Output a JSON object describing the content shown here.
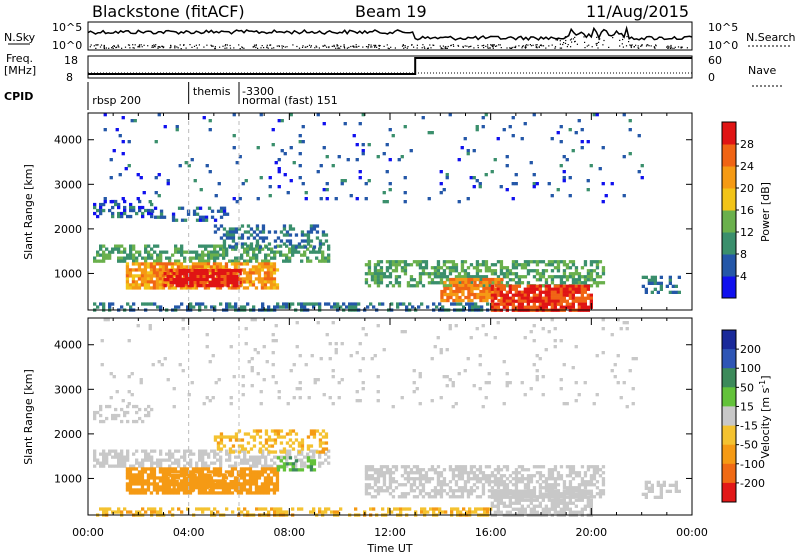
{
  "header": {
    "station": "Blackstone (fitACF)",
    "beam": "Beam 19",
    "date": "11/Aug/2015"
  },
  "nsky_panel": {
    "left_label": "N.Sky",
    "right_label": "N.Search",
    "left_ticks": [
      "10^5",
      "10^0"
    ],
    "right_ticks": [
      "10^5",
      "10^0"
    ]
  },
  "freq_panel": {
    "left_label_1": "Freq.",
    "left_label_2": "[MHz]",
    "right_label": "Nave",
    "left_ticks": [
      "18",
      "8"
    ],
    "right_ticks": [
      "60",
      "0"
    ],
    "freq_mhz": [
      {
        "t": 0,
        "v": 10
      },
      {
        "t": 13.0,
        "v": 10
      },
      {
        "t": 13.0,
        "v": 18
      },
      {
        "t": 24,
        "v": 18
      }
    ],
    "nave_level": 18
  },
  "cpid_panel": {
    "label": "CPID",
    "entries": [
      {
        "t": 0.05,
        "name": "rbsp 200",
        "row": 1
      },
      {
        "t": 4.05,
        "name": "themis",
        "row": 0
      },
      {
        "t": 6.0,
        "name": "-3300",
        "row": 0
      },
      {
        "t": 6.0,
        "name": "normal (fast) 151",
        "row": 1
      }
    ],
    "markers_hours": [
      4.0,
      6.0
    ]
  },
  "colors": {
    "power": [
      "#1010ee",
      "#2457a8",
      "#3a8f6c",
      "#6ab04c",
      "#f2c418",
      "#f59a14",
      "#f06414",
      "#e01414"
    ],
    "velocity": [
      "#1a2a9a",
      "#2e55b5",
      "#3c8a5a",
      "#63c23a",
      "#c8c8c8",
      "#f4c230",
      "#f59a14",
      "#f06a14",
      "#e21818"
    ]
  },
  "chart_data": [
    {
      "type": "heatmap",
      "name": "power",
      "ylabel": "Slant Range [km]",
      "xlim_hours": [
        0,
        24
      ],
      "ylim_km": [
        180,
        4600
      ],
      "yticks": [
        1000,
        2000,
        3000,
        4000
      ],
      "colorbar": {
        "label": "Power [dB]",
        "ticks": [
          4,
          8,
          12,
          16,
          20,
          24,
          28
        ],
        "range": [
          0,
          32
        ]
      },
      "regions": [
        {
          "t0": 0.2,
          "t1": 9.5,
          "r0": 1250,
          "r1": 1650,
          "v": 12,
          "d": 0.55
        },
        {
          "t0": 1.5,
          "t1": 7.5,
          "r0": 650,
          "r1": 1250,
          "v": 22,
          "d": 0.8
        },
        {
          "t0": 3.0,
          "t1": 6.0,
          "r0": 700,
          "r1": 1100,
          "v": 30,
          "d": 0.85
        },
        {
          "t0": 5.0,
          "t1": 9.5,
          "r0": 1600,
          "r1": 2100,
          "v": 8,
          "d": 0.35
        },
        {
          "t0": 0.2,
          "t1": 2.5,
          "r0": 2300,
          "r1": 2650,
          "v": 6,
          "d": 0.4
        },
        {
          "t0": 2.5,
          "t1": 5.5,
          "r0": 2200,
          "r1": 2500,
          "v": 6,
          "d": 0.3
        },
        {
          "t0": 11.0,
          "t1": 20.5,
          "r0": 700,
          "r1": 1300,
          "v": 12,
          "d": 0.55
        },
        {
          "t0": 14.0,
          "t1": 16.5,
          "r0": 400,
          "r1": 900,
          "v": 24,
          "d": 0.75
        },
        {
          "t0": 16.0,
          "t1": 20.0,
          "r0": 200,
          "r1": 750,
          "v": 29,
          "d": 0.85
        },
        {
          "t0": 0.2,
          "t1": 16.0,
          "r0": 180,
          "r1": 350,
          "v": 8,
          "d": 0.45
        },
        {
          "t0": 22.0,
          "t1": 23.5,
          "r0": 550,
          "r1": 950,
          "v": 8,
          "d": 0.45
        },
        {
          "t0": 0.5,
          "t1": 22.0,
          "r0": 2600,
          "r1": 4600,
          "v": 6,
          "d": 0.04
        }
      ]
    },
    {
      "type": "heatmap",
      "name": "velocity",
      "ylabel": "Slant Range [km]",
      "xlim_hours": [
        0,
        24
      ],
      "ylim_km": [
        180,
        4600
      ],
      "yticks": [
        1000,
        2000,
        3000,
        4000
      ],
      "colorbar": {
        "label": "Velocity [m s^-1]",
        "ticks": [
          200,
          100,
          50,
          15,
          -15,
          -50,
          -100,
          -200
        ],
        "range": [
          -250,
          250
        ]
      },
      "regions": [
        {
          "t0": 0.2,
          "t1": 9.5,
          "r0": 1250,
          "r1": 1650,
          "v": 0,
          "d": 0.55
        },
        {
          "t0": 1.5,
          "t1": 7.5,
          "r0": 650,
          "r1": 1250,
          "v": -40,
          "d": 0.8
        },
        {
          "t0": 3.0,
          "t1": 6.0,
          "r0": 700,
          "r1": 1100,
          "v": -60,
          "d": 0.6
        },
        {
          "t0": 5.0,
          "t1": 9.5,
          "r0": 1600,
          "r1": 2100,
          "v": -30,
          "d": 0.35
        },
        {
          "t0": 7.5,
          "t1": 9.0,
          "r0": 1200,
          "r1": 1500,
          "v": 30,
          "d": 0.5
        },
        {
          "t0": 0.2,
          "t1": 2.5,
          "r0": 2300,
          "r1": 2650,
          "v": 0,
          "d": 0.35
        },
        {
          "t0": 11.0,
          "t1": 20.5,
          "r0": 600,
          "r1": 1300,
          "v": 0,
          "d": 0.55
        },
        {
          "t0": 16.0,
          "t1": 20.0,
          "r0": 200,
          "r1": 750,
          "v": 0,
          "d": 0.7
        },
        {
          "t0": 0.2,
          "t1": 16.0,
          "r0": 180,
          "r1": 350,
          "v": -30,
          "d": 0.4
        },
        {
          "t0": 22.0,
          "t1": 23.5,
          "r0": 550,
          "r1": 950,
          "v": 0,
          "d": 0.45
        },
        {
          "t0": 0.5,
          "t1": 22.0,
          "r0": 2600,
          "r1": 4600,
          "v": 0,
          "d": 0.04
        }
      ]
    }
  ],
  "xaxis": {
    "label": "Time UT",
    "ticks": [
      "00:00",
      "04:00",
      "08:00",
      "12:00",
      "16:00",
      "20:00",
      "00:00"
    ]
  }
}
